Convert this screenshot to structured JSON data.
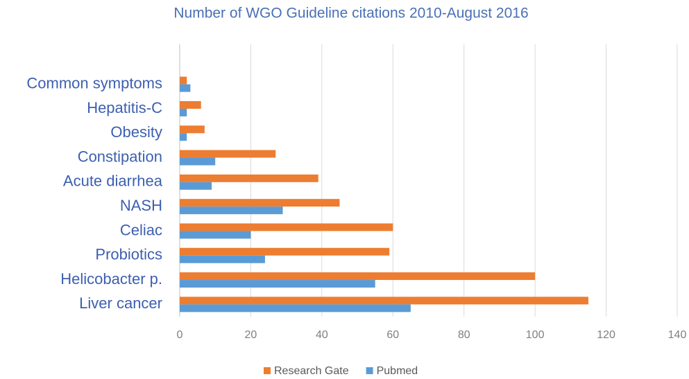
{
  "chart_data": {
    "type": "bar",
    "orientation": "horizontal",
    "title": "Number of WGO Guideline citations 2010-August 2016",
    "categories": [
      "Common symptoms",
      "Hepatitis-C",
      "Obesity",
      "Constipation",
      "Acute diarrhea",
      "NASH",
      "Celiac",
      "Probiotics",
      "Helicobacter p.",
      "Liver cancer"
    ],
    "series": [
      {
        "name": "Research Gate",
        "color": "#ed7d31",
        "values": [
          2,
          6,
          7,
          27,
          39,
          45,
          60,
          59,
          100,
          115
        ]
      },
      {
        "name": "Pubmed",
        "color": "#5b9bd5",
        "values": [
          3,
          2,
          2,
          10,
          9,
          29,
          20,
          24,
          55,
          65
        ]
      }
    ],
    "xlim": [
      0,
      140
    ],
    "xticks": [
      0,
      20,
      40,
      60,
      80,
      100,
      120,
      140
    ],
    "grid": true,
    "legend": "bottom"
  }
}
